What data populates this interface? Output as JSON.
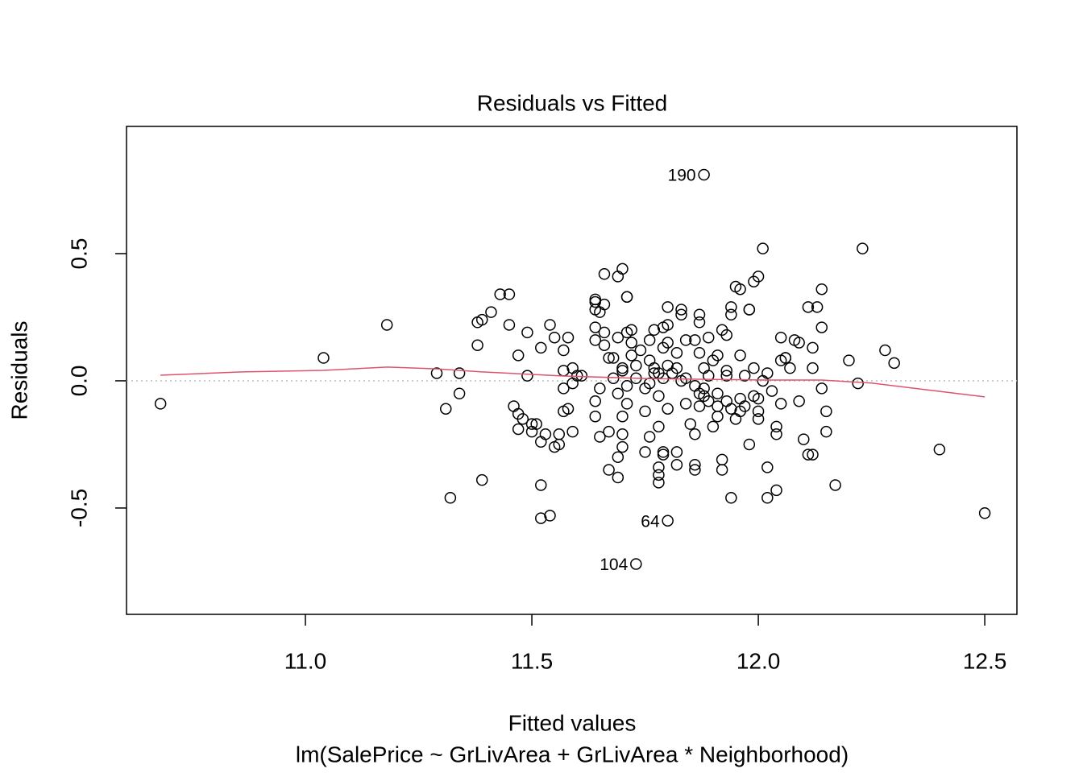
{
  "chart_data": {
    "type": "scatter",
    "title": "Residuals vs Fitted",
    "xlabel": "Fitted values",
    "subtitle": "lm(SalePrice ~ GrLivArea + GrLivArea * Neighborhood)",
    "ylabel": "Residuals",
    "xlim": [
      10.605,
      12.571
    ],
    "ylim": [
      -0.918,
      1.0
    ],
    "xticks": [
      {
        "value": 11,
        "label": "11.0"
      },
      11.5,
      {
        "value": 12,
        "label": "12.0"
      },
      12.5
    ],
    "yticks": [
      -0.5,
      {
        "value": 0,
        "label": "0.0"
      },
      0.5
    ],
    "color": "#000000",
    "hline": 0,
    "x": [
      10.68,
      11.04,
      11.18,
      11.29,
      11.31,
      11.32,
      11.34,
      11.34,
      11.38,
      11.38,
      11.39,
      11.39,
      11.41,
      11.43,
      11.45,
      11.45,
      11.46,
      11.47,
      11.47,
      11.47,
      11.48,
      11.49,
      11.49,
      11.5,
      11.5,
      11.51,
      11.52,
      11.52,
      11.52,
      11.52,
      11.53,
      11.54,
      11.54,
      11.55,
      11.55,
      11.56,
      11.56,
      11.57,
      11.57,
      11.57,
      11.57,
      11.58,
      11.58,
      11.59,
      11.59,
      11.59,
      11.6,
      11.61,
      11.64,
      11.64,
      11.65,
      11.64,
      11.64,
      11.64,
      11.64,
      11.65,
      11.66,
      11.66,
      11.66,
      11.66,
      11.64,
      11.67,
      11.67,
      11.67,
      11.68,
      11.69,
      11.69,
      11.69,
      11.7,
      11.69,
      11.7,
      11.7,
      11.7,
      11.7,
      11.71,
      11.71,
      11.71,
      11.71,
      11.72,
      11.72,
      11.72,
      11.73,
      11.73,
      11.74,
      11.75,
      11.76,
      11.76,
      11.76,
      11.77,
      11.77,
      11.78,
      11.78,
      11.78,
      11.78,
      11.78,
      11.79,
      11.79,
      11.79,
      11.79,
      11.79,
      11.8,
      11.8,
      11.8,
      11.8,
      11.8,
      11.81,
      11.82,
      11.82,
      11.83,
      11.83,
      11.83,
      11.84,
      11.84,
      11.85,
      11.86,
      11.86,
      11.86,
      11.87,
      11.87,
      11.87,
      11.87,
      11.88,
      11.88,
      11.88,
      11.88,
      11.89,
      11.89,
      11.9,
      11.9,
      11.91,
      11.91,
      11.91,
      11.92,
      11.92,
      11.92,
      11.93,
      11.93,
      11.93,
      11.94,
      11.94,
      11.94,
      11.95,
      11.95,
      11.96,
      11.96,
      11.96,
      11.97,
      11.97,
      11.98,
      11.98,
      11.98,
      11.99,
      11.99,
      11.99,
      12.0,
      12.0,
      12.0,
      12.01,
      12.01,
      12.02,
      12.02,
      12.02,
      12.03,
      12.04,
      12.04,
      12.04,
      12.05,
      12.05,
      12.05,
      12.06,
      12.06,
      12.07,
      12.08,
      12.09,
      12.09,
      12.1,
      12.11,
      12.11,
      12.12,
      12.12,
      12.12,
      12.13,
      12.14,
      12.14,
      12.14,
      12.15,
      12.15,
      12.17,
      12.2,
      12.22,
      12.23,
      12.28,
      12.3,
      12.4,
      12.5,
      11.65,
      11.68,
      11.69,
      11.7,
      11.71,
      11.73,
      11.75,
      11.77,
      11.78,
      11.8,
      11.82,
      11.84,
      11.86,
      11.87,
      11.89,
      11.91,
      11.93,
      11.94,
      11.96,
      12.0,
      11.75,
      11.76,
      11.82,
      11.86
    ],
    "values": [
      -0.09,
      0.09,
      0.22,
      0.03,
      -0.11,
      -0.46,
      0.03,
      -0.05,
      0.23,
      0.14,
      -0.39,
      0.24,
      0.27,
      0.34,
      0.34,
      0.22,
      -0.1,
      -0.19,
      0.1,
      -0.13,
      -0.15,
      0.02,
      0.19,
      -0.17,
      -0.2,
      -0.17,
      -0.24,
      -0.54,
      -0.41,
      0.13,
      -0.21,
      0.22,
      -0.53,
      0.17,
      -0.26,
      -0.25,
      -0.21,
      -0.03,
      -0.12,
      0.12,
      0.04,
      -0.11,
      0.17,
      -0.2,
      0.05,
      -0.01,
      0.02,
      0.02,
      -0.08,
      -0.14,
      -0.22,
      0.28,
      0.21,
      0.32,
      0.31,
      0.27,
      0.19,
      0.14,
      0.42,
      0.3,
      0.16,
      -0.2,
      0.09,
      -0.35,
      0.09,
      -0.38,
      -0.3,
      0.41,
      0.44,
      0.17,
      -0.21,
      -0.26,
      -0.14,
      0.04,
      0.33,
      0.33,
      -0.09,
      0.19,
      0.15,
      0.2,
      0.1,
      -0.72,
      0.06,
      0.12,
      -0.12,
      -0.01,
      0.16,
      0.08,
      0.03,
      0.2,
      -0.06,
      -0.37,
      -0.18,
      -0.34,
      -0.4,
      0.21,
      -0.29,
      -0.28,
      0.13,
      0.01,
      -0.55,
      -0.11,
      0.29,
      0.15,
      0.22,
      0.03,
      0.11,
      -0.33,
      0.0,
      0.28,
      0.26,
      0.16,
      -0.09,
      -0.17,
      -0.33,
      -0.35,
      0.16,
      0.26,
      -0.1,
      0.11,
      0.23,
      0.81,
      -0.06,
      -0.03,
      0.05,
      0.17,
      0.02,
      -0.18,
      0.08,
      0.1,
      -0.05,
      -0.14,
      -0.35,
      -0.31,
      0.2,
      0.04,
      0.02,
      0.18,
      0.29,
      0.26,
      -0.46,
      0.37,
      -0.15,
      -0.07,
      0.36,
      0.1,
      0.02,
      -0.1,
      -0.25,
      0.28,
      0.28,
      0.39,
      0.05,
      -0.06,
      0.41,
      -0.12,
      -0.07,
      0.52,
      0.0,
      0.03,
      -0.34,
      -0.46,
      -0.04,
      -0.43,
      -0.18,
      -0.21,
      0.17,
      -0.09,
      0.08,
      0.09,
      0.09,
      0.05,
      0.16,
      -0.08,
      0.15,
      -0.23,
      -0.29,
      0.29,
      0.13,
      -0.29,
      0.05,
      0.29,
      0.21,
      0.36,
      -0.03,
      -0.12,
      -0.2,
      -0.41,
      0.08,
      -0.01,
      0.52,
      0.12,
      0.07,
      -0.27,
      -0.52,
      -0.03,
      0.01,
      -0.05,
      0.05,
      -0.02,
      0.01,
      -0.03,
      0.05,
      0.03,
      0.06,
      0.05,
      0.01,
      -0.02,
      -0.05,
      -0.08,
      -0.1,
      -0.08,
      -0.11,
      -0.12,
      -0.15,
      -0.28,
      -0.22,
      -0.28,
      -0.21
    ],
    "smooth": {
      "color": "#DF536B",
      "x": [
        10.68,
        10.86,
        11.04,
        11.18,
        11.29,
        11.39,
        11.57,
        11.75,
        11.87,
        12.02,
        12.14,
        12.25,
        12.37,
        12.5
      ],
      "values": [
        0.022,
        0.035,
        0.041,
        0.054,
        0.047,
        0.035,
        0.019,
        0.009,
        0.006,
        0.003,
        0.003,
        -0.009,
        -0.035,
        -0.063
      ]
    },
    "annotations": [
      {
        "text": "190",
        "x": 11.88,
        "y": 0.81
      },
      {
        "text": "64",
        "x": 11.8,
        "y": -0.55
      },
      {
        "text": "104",
        "x": 11.73,
        "y": -0.72
      }
    ]
  }
}
